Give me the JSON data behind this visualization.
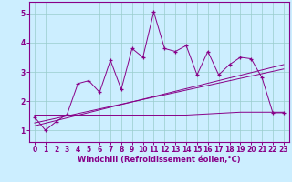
{
  "title": "",
  "xlabel": "Windchill (Refroidissement éolien,°C)",
  "background_color": "#cceeff",
  "line_color": "#880088",
  "grid_color": "#99cccc",
  "xlim": [
    -0.5,
    23.5
  ],
  "ylim": [
    0.6,
    5.4
  ],
  "yticks": [
    1,
    2,
    3,
    4,
    5
  ],
  "xticks": [
    0,
    1,
    2,
    3,
    4,
    5,
    6,
    7,
    8,
    9,
    10,
    11,
    12,
    13,
    14,
    15,
    16,
    17,
    18,
    19,
    20,
    21,
    22,
    23
  ],
  "main_line_x": [
    0,
    1,
    2,
    3,
    4,
    5,
    6,
    7,
    8,
    9,
    10,
    11,
    12,
    13,
    14,
    15,
    16,
    17,
    18,
    19,
    20,
    21,
    22,
    23
  ],
  "main_line_y": [
    1.45,
    1.0,
    1.3,
    1.55,
    2.6,
    2.7,
    2.3,
    3.4,
    2.4,
    3.8,
    3.5,
    5.05,
    3.8,
    3.7,
    3.9,
    2.9,
    3.7,
    2.9,
    3.25,
    3.5,
    3.45,
    2.8,
    1.6,
    1.6
  ],
  "reg_line1_x": [
    0,
    23
  ],
  "reg_line1_y": [
    1.15,
    3.25
  ],
  "reg_line2_x": [
    0,
    23
  ],
  "reg_line2_y": [
    1.25,
    3.1
  ],
  "flat_line_x": [
    0,
    14,
    19,
    23
  ],
  "flat_line_y": [
    1.52,
    1.52,
    1.62,
    1.62
  ],
  "xlabel_fontsize": 6,
  "tick_fontsize": 5.5,
  "linewidth": 0.7,
  "markersize": 3.0
}
